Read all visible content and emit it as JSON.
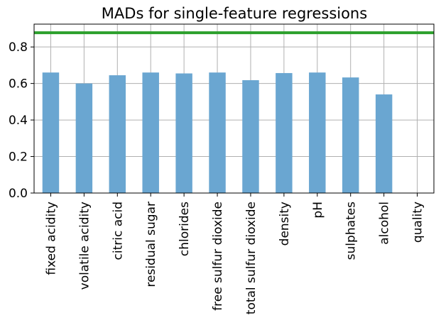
{
  "chart_data": {
    "type": "bar",
    "title": "MADs for single-feature regressions",
    "xlabel": "",
    "ylabel": "",
    "categories": [
      "fixed acidity",
      "volatile acidity",
      "citric acid",
      "residual sugar",
      "chlorides",
      "free sulfur dioxide",
      "total sulfur dioxide",
      "density",
      "pH",
      "sulphates",
      "alcohol",
      "quality"
    ],
    "values": [
      0.66,
      0.6,
      0.645,
      0.66,
      0.655,
      0.66,
      0.618,
      0.657,
      0.66,
      0.633,
      0.54,
      0.0
    ],
    "ylim": [
      0,
      0.925
    ],
    "yticks": [
      0.0,
      0.2,
      0.4,
      0.6,
      0.8
    ],
    "ytick_labels": [
      "0.0",
      "0.2",
      "0.4",
      "0.6",
      "0.8"
    ],
    "reference_line": {
      "value": 0.878,
      "color": "#2ca02c"
    },
    "bar_color": "#6aa6d1",
    "grid": true,
    "legend": "none"
  }
}
